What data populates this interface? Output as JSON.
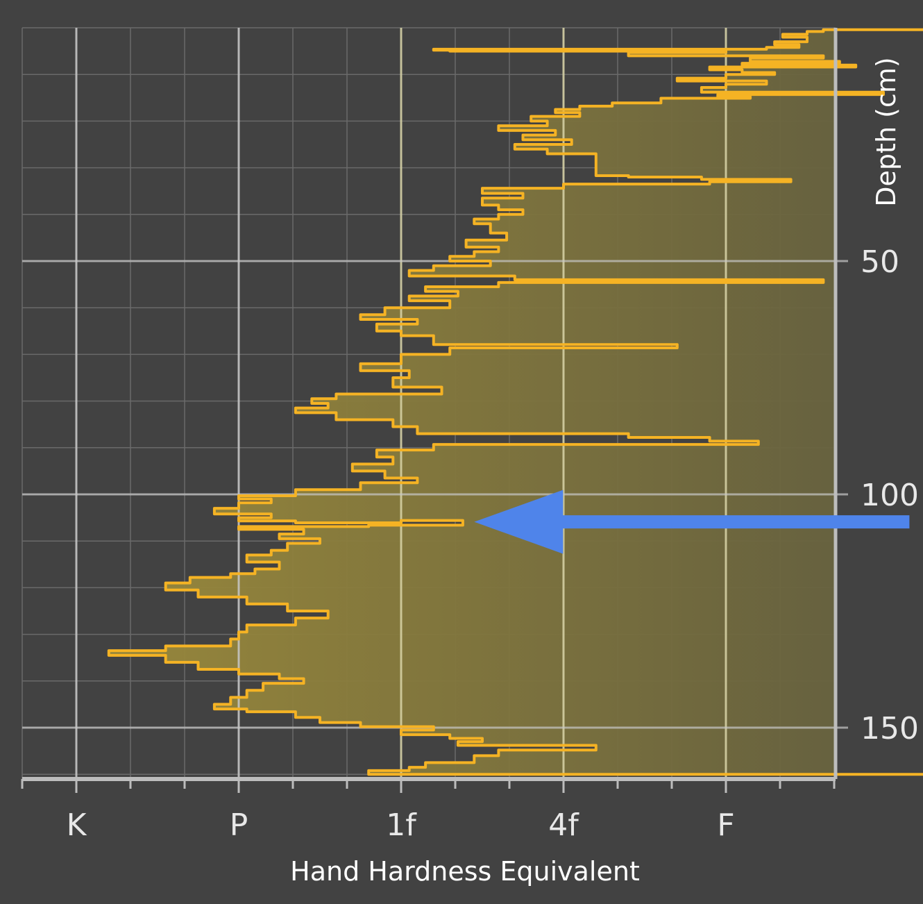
{
  "colors": {
    "background": "#424242",
    "profile_line": "#f5b324",
    "fill_light": "#9b8a3b",
    "fill_dark": "#5a5840",
    "grid_major": "#c8c8c8",
    "grid_major_right": "#d9d4a8",
    "grid_minor": "#6a6a6a",
    "axis": "#bdbdbd",
    "arrow": "#4f84ea"
  },
  "chart_data": {
    "type": "area",
    "orientation": "horizontal",
    "xlabel": "Hand Hardness Equivalent",
    "ylabel": "Depth (cm)",
    "x_ticks": [
      "K",
      "P",
      "1f",
      "4f",
      "F"
    ],
    "y_ticks": [
      50,
      100,
      150
    ],
    "xlim": [
      0,
      6
    ],
    "ylim": [
      0,
      160
    ],
    "y_inverted": true,
    "grid": true,
    "x_units_note": "",
    "series": [
      {
        "points": [
          [
            5.94,
            0
          ],
          [
            4.6,
            0.4
          ],
          [
            4.5,
            0.8
          ],
          [
            4.35,
            1.4
          ],
          [
            4.5,
            2
          ],
          [
            4.3,
            3
          ],
          [
            4.45,
            3.6
          ],
          [
            4.25,
            4.2
          ],
          [
            2.2,
            4.6
          ],
          [
            2.3,
            4.8
          ],
          [
            4.0,
            5.0
          ],
          [
            3.4,
            5.3
          ],
          [
            4.6,
            6.0
          ],
          [
            4.15,
            6.5
          ],
          [
            4.7,
            7.2
          ],
          [
            4.1,
            7.6
          ],
          [
            4.8,
            8.0
          ],
          [
            3.9,
            8.4
          ],
          [
            4.1,
            9.0
          ],
          [
            4.3,
            9.6
          ],
          [
            4.0,
            10.0
          ],
          [
            3.7,
            10.8
          ],
          [
            4.25,
            11.4
          ],
          [
            4.0,
            12.1
          ],
          [
            3.85,
            12.8
          ],
          [
            4.97,
            13.8
          ],
          [
            3.95,
            14.3
          ],
          [
            4.15,
            14.8
          ],
          [
            3.6,
            15.1
          ],
          [
            3.3,
            16.1
          ],
          [
            3.1,
            16.8
          ],
          [
            2.95,
            17.5
          ],
          [
            3.1,
            18.2
          ],
          [
            2.8,
            19.0
          ],
          [
            2.9,
            20.0
          ],
          [
            2.6,
            21.0
          ],
          [
            2.95,
            22.0
          ],
          [
            2.75,
            23.0
          ],
          [
            3.05,
            24.0
          ],
          [
            2.7,
            25.0
          ],
          [
            2.9,
            26.0
          ],
          [
            3.2,
            27.0
          ],
          [
            3.4,
            31.7
          ],
          [
            3.85,
            32.0
          ],
          [
            4.4,
            32.5
          ],
          [
            3.9,
            33.0
          ],
          [
            3.0,
            33.5
          ],
          [
            2.5,
            34.4
          ],
          [
            2.75,
            35.5
          ],
          [
            2.5,
            36.5
          ],
          [
            2.6,
            38.0
          ],
          [
            2.75,
            39.0
          ],
          [
            2.6,
            40.0
          ],
          [
            2.45,
            41.0
          ],
          [
            2.55,
            42.0
          ],
          [
            2.65,
            44.0
          ],
          [
            2.4,
            45.5
          ],
          [
            2.6,
            47.0
          ],
          [
            2.45,
            48.0
          ],
          [
            2.3,
            49.0
          ],
          [
            2.55,
            50.0
          ],
          [
            2.2,
            51.0
          ],
          [
            2.05,
            52.0
          ],
          [
            2.7,
            53.2
          ],
          [
            4.6,
            54.0
          ],
          [
            2.6,
            54.6
          ],
          [
            2.15,
            55.5
          ],
          [
            2.35,
            56.5
          ],
          [
            2.05,
            57.5
          ],
          [
            2.3,
            58.5
          ],
          [
            1.9,
            60.0
          ],
          [
            1.75,
            61.5
          ],
          [
            2.1,
            62.5
          ],
          [
            1.85,
            63.5
          ],
          [
            2.0,
            65.0
          ],
          [
            2.2,
            66.0
          ],
          [
            3.7,
            67.9
          ],
          [
            2.3,
            68.6
          ],
          [
            2.0,
            70.0
          ],
          [
            1.75,
            72.0
          ],
          [
            2.05,
            73.5
          ],
          [
            1.95,
            75.0
          ],
          [
            2.25,
            77.0
          ],
          [
            1.6,
            78.5
          ],
          [
            1.45,
            79.5
          ],
          [
            1.55,
            80.5
          ],
          [
            1.35,
            81.5
          ],
          [
            1.6,
            82.5
          ],
          [
            1.95,
            84.0
          ],
          [
            2.1,
            85.5
          ],
          [
            3.4,
            87.0
          ],
          [
            3.9,
            87.8
          ],
          [
            4.2,
            88.6
          ],
          [
            2.2,
            89.3
          ],
          [
            1.85,
            90.5
          ],
          [
            1.95,
            92.0
          ],
          [
            1.7,
            93.5
          ],
          [
            1.9,
            95.0
          ],
          [
            2.1,
            96.5
          ],
          [
            1.75,
            97.5
          ],
          [
            1.35,
            99.0
          ],
          [
            1.0,
            100.3
          ],
          [
            1.2,
            101.0
          ],
          [
            1.0,
            101.8
          ],
          [
            0.85,
            103.0
          ],
          [
            1.2,
            104.2
          ],
          [
            1.0,
            105.0
          ],
          [
            1.35,
            105.7
          ],
          [
            2.0,
            106.1
          ],
          [
            2.38,
            105.6
          ],
          [
            1.8,
            106.6
          ],
          [
            1.0,
            106.9
          ],
          [
            1.4,
            107.5
          ],
          [
            1.25,
            108.5
          ],
          [
            1.5,
            109.5
          ],
          [
            1.3,
            110.5
          ],
          [
            1.2,
            112.0
          ],
          [
            1.05,
            113.0
          ],
          [
            1.25,
            114.5
          ],
          [
            1.1,
            116.0
          ],
          [
            0.95,
            117.0
          ],
          [
            0.7,
            117.8
          ],
          [
            0.55,
            119.0
          ],
          [
            0.75,
            120.5
          ],
          [
            1.05,
            122.0
          ],
          [
            1.3,
            123.5
          ],
          [
            1.55,
            125.0
          ],
          [
            1.35,
            126.5
          ],
          [
            1.05,
            128.0
          ],
          [
            1.0,
            129.5
          ],
          [
            0.95,
            131.0
          ],
          [
            0.55,
            132.5
          ],
          [
            0.2,
            133.5
          ],
          [
            0.55,
            134.5
          ],
          [
            0.75,
            136.0
          ],
          [
            1.0,
            137.5
          ],
          [
            1.25,
            138.5
          ],
          [
            1.4,
            139.5
          ],
          [
            1.15,
            140.5
          ],
          [
            1.05,
            142.0
          ],
          [
            0.95,
            143.5
          ],
          [
            0.85,
            145.0
          ],
          [
            1.05,
            146.0
          ],
          [
            1.35,
            146.6
          ],
          [
            1.5,
            147.8
          ],
          [
            1.75,
            148.9
          ],
          [
            2.2,
            149.8
          ],
          [
            2.0,
            150.5
          ],
          [
            2.3,
            151.5
          ],
          [
            2.5,
            152.3
          ],
          [
            2.35,
            153.0
          ],
          [
            3.2,
            153.8
          ],
          [
            2.6,
            154.8
          ],
          [
            2.45,
            156.0
          ],
          [
            2.15,
            157.5
          ],
          [
            2.05,
            158.5
          ],
          [
            1.8,
            159.2
          ],
          [
            5.94,
            160.0
          ]
        ]
      }
    ],
    "annotations": [
      {
        "type": "arrow",
        "tail": [
          5.13,
          105.9
        ],
        "head": [
          2.45,
          105.9
        ]
      }
    ]
  }
}
